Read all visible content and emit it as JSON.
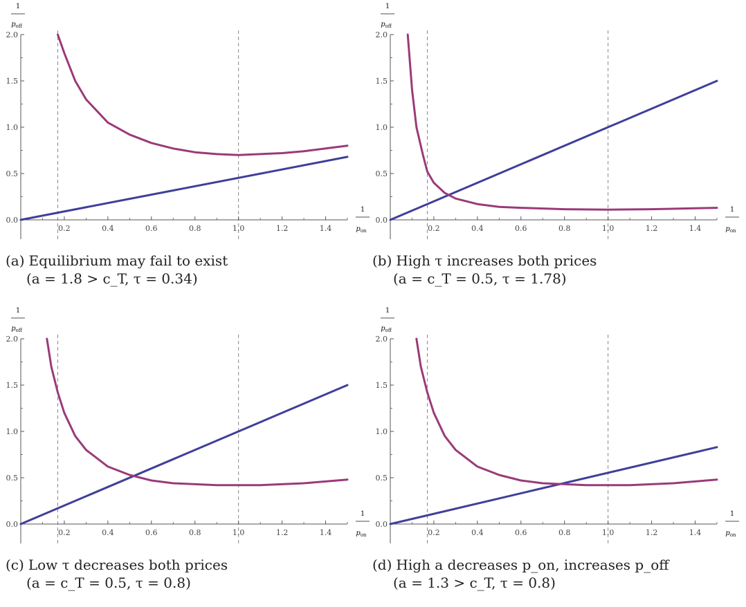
{
  "chart_data": [
    {
      "type": "line",
      "panel_label": "(a)",
      "title": "Equilibrium may fail to exist",
      "subtitle": "(a = 1.8 > c_T, τ = 0.34)",
      "xlabel_num": "1",
      "xlabel_den": "p",
      "xlabel_sub": "on",
      "ylabel_num": "1",
      "ylabel_den": "p",
      "ylabel_sub": "off",
      "xlim": [
        0,
        1.5
      ],
      "ylim": [
        0,
        2.0
      ],
      "xticks": [
        "0.2",
        "0.4",
        "0.6",
        "0.8",
        "1.0",
        "1.2",
        "1.4"
      ],
      "yticks": [
        "0.0",
        "0.5",
        "1.0",
        "1.5",
        "2.0"
      ],
      "vlines": [
        0.17,
        1.0
      ],
      "series": [
        {
          "color": "#3f3f9a",
          "x": [
            0,
            1.5
          ],
          "y": [
            0,
            0.68
          ]
        },
        {
          "color": "#9a3a78",
          "x": [
            0.17,
            0.2,
            0.25,
            0.3,
            0.4,
            0.5,
            0.6,
            0.7,
            0.8,
            0.9,
            1.0,
            1.1,
            1.2,
            1.3,
            1.4,
            1.5
          ],
          "y": [
            2.0,
            1.8,
            1.5,
            1.3,
            1.05,
            0.92,
            0.83,
            0.77,
            0.73,
            0.71,
            0.7,
            0.71,
            0.72,
            0.74,
            0.77,
            0.8
          ]
        }
      ]
    },
    {
      "type": "line",
      "panel_label": "(b)",
      "title": "High τ increases both prices",
      "subtitle": "(a = c_T = 0.5, τ = 1.78)",
      "xlabel_num": "1",
      "xlabel_den": "p",
      "xlabel_sub": "on",
      "ylabel_num": "1",
      "ylabel_den": "p",
      "ylabel_sub": "off",
      "xlim": [
        0,
        1.5
      ],
      "ylim": [
        0,
        2.0
      ],
      "xticks": [
        "0.2",
        "0.4",
        "0.6",
        "0.8",
        "1.0",
        "1.2",
        "1.4"
      ],
      "yticks": [
        "0.0",
        "0.5",
        "1.0",
        "1.5",
        "2.0"
      ],
      "vlines": [
        0.17,
        1.0
      ],
      "series": [
        {
          "color": "#3f3f9a",
          "x": [
            0,
            1.5
          ],
          "y": [
            0,
            1.5
          ]
        },
        {
          "color": "#9a3a78",
          "x": [
            0.08,
            0.1,
            0.12,
            0.15,
            0.17,
            0.2,
            0.25,
            0.3,
            0.4,
            0.5,
            0.6,
            0.8,
            1.0,
            1.2,
            1.4,
            1.5
          ],
          "y": [
            2.0,
            1.4,
            1.0,
            0.7,
            0.52,
            0.4,
            0.29,
            0.23,
            0.17,
            0.14,
            0.13,
            0.115,
            0.11,
            0.115,
            0.125,
            0.13
          ]
        }
      ]
    },
    {
      "type": "line",
      "panel_label": "(c)",
      "title": "Low τ decreases both prices",
      "subtitle": "(a = c_T = 0.5, τ = 0.8)",
      "xlabel_num": "1",
      "xlabel_den": "p",
      "xlabel_sub": "on",
      "ylabel_num": "1",
      "ylabel_den": "p",
      "ylabel_sub": "off",
      "xlim": [
        0,
        1.5
      ],
      "ylim": [
        0,
        2.0
      ],
      "xticks": [
        "0.2",
        "0.4",
        "0.6",
        "0.8",
        "1.0",
        "1.2",
        "1.4"
      ],
      "yticks": [
        "0.0",
        "0.5",
        "1.0",
        "1.5",
        "2.0"
      ],
      "vlines": [
        0.17,
        1.0
      ],
      "series": [
        {
          "color": "#3f3f9a",
          "x": [
            0,
            1.5
          ],
          "y": [
            0,
            1.5
          ]
        },
        {
          "color": "#9a3a78",
          "x": [
            0.12,
            0.14,
            0.17,
            0.2,
            0.25,
            0.3,
            0.4,
            0.5,
            0.6,
            0.7,
            0.8,
            0.9,
            1.0,
            1.1,
            1.2,
            1.3,
            1.4,
            1.5
          ],
          "y": [
            2.0,
            1.7,
            1.42,
            1.2,
            0.95,
            0.8,
            0.62,
            0.53,
            0.47,
            0.44,
            0.43,
            0.42,
            0.42,
            0.42,
            0.43,
            0.44,
            0.46,
            0.48
          ]
        }
      ]
    },
    {
      "type": "line",
      "panel_label": "(d)",
      "title": "High a decreases p_on, increases p_off",
      "subtitle": "(a = 1.3 > c_T, τ = 0.8)",
      "xlabel_num": "1",
      "xlabel_den": "p",
      "xlabel_sub": "on",
      "ylabel_num": "1",
      "ylabel_den": "p",
      "ylabel_sub": "off",
      "xlim": [
        0,
        1.5
      ],
      "ylim": [
        0,
        2.0
      ],
      "xticks": [
        "0.2",
        "0.4",
        "0.6",
        "0.8",
        "1.0",
        "1.2",
        "1.4"
      ],
      "yticks": [
        "0.0",
        "0.5",
        "1.0",
        "1.5",
        "2.0"
      ],
      "vlines": [
        0.17,
        1.0
      ],
      "series": [
        {
          "color": "#3f3f9a",
          "x": [
            0,
            1.5
          ],
          "y": [
            0,
            0.83
          ]
        },
        {
          "color": "#9a3a78",
          "x": [
            0.12,
            0.14,
            0.17,
            0.2,
            0.25,
            0.3,
            0.4,
            0.5,
            0.6,
            0.7,
            0.8,
            0.9,
            1.0,
            1.1,
            1.2,
            1.3,
            1.4,
            1.5
          ],
          "y": [
            2.0,
            1.7,
            1.42,
            1.2,
            0.95,
            0.8,
            0.62,
            0.53,
            0.47,
            0.44,
            0.43,
            0.42,
            0.42,
            0.42,
            0.43,
            0.44,
            0.46,
            0.48
          ]
        }
      ]
    }
  ]
}
